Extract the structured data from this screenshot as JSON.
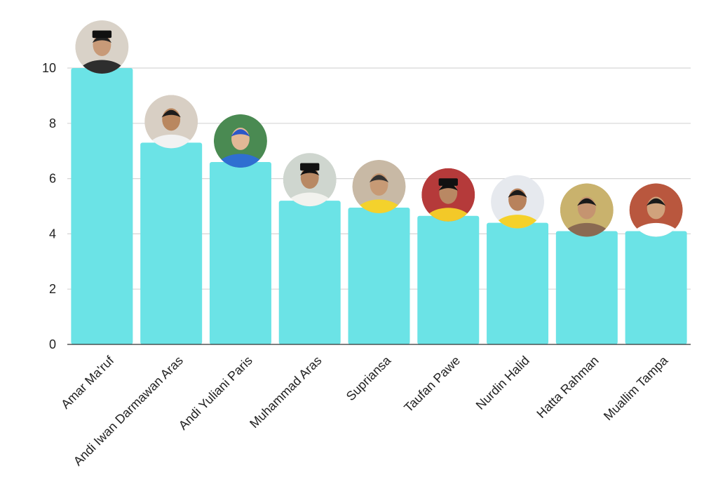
{
  "chart_data": {
    "type": "bar",
    "categories": [
      "Amar Ma'ruf",
      "Andi Iwan Darmawan Aras",
      "Andi Yuliani Paris",
      "Muhammad Aras",
      "Supriansa",
      "Taufan Pawe",
      "Nurdin Halid",
      "Hatta Rahman",
      "Muallim Tampa"
    ],
    "values": [
      10.0,
      7.3,
      6.6,
      5.2,
      4.95,
      4.65,
      4.4,
      4.1,
      4.1
    ],
    "yticks": [
      "0",
      "2",
      "4",
      "6",
      "8",
      "10"
    ],
    "ylim": [
      0,
      10
    ],
    "grid": true,
    "bar_color": "#6be3e6",
    "grid_color": "#d6d6d6",
    "axis_color": "#333333",
    "photo_palettes": [
      {
        "bg": "#d9d2c8",
        "skin": "#c89a78",
        "hair": "#222222",
        "cloth": "#2e2e2e",
        "hat": "#111111"
      },
      {
        "bg": "#d8cfc4",
        "skin": "#b9875f",
        "hair": "#1c1c1c",
        "cloth": "#f2f2f2",
        "hat": ""
      },
      {
        "bg": "#4a8a52",
        "skin": "#e2b896",
        "hair": "#2b57c9",
        "cloth": "#2f6fd1",
        "hat": ""
      },
      {
        "bg": "#cfd6cf",
        "skin": "#b88964",
        "hair": "#111111",
        "cloth": "#f2f2ee",
        "hat": "#111111"
      },
      {
        "bg": "#c8b9a5",
        "skin": "#c79a75",
        "hair": "#333333",
        "cloth": "#f4d22c",
        "hat": ""
      },
      {
        "bg": "#b53a3a",
        "skin": "#b98863",
        "hair": "#111111",
        "cloth": "#f3c928",
        "hat": "#111111"
      },
      {
        "bg": "#e6e9ee",
        "skin": "#b8825c",
        "hair": "#1a1a1a",
        "cloth": "#f5d12a",
        "hat": ""
      },
      {
        "bg": "#c9b26d",
        "skin": "#c59470",
        "hair": "#1a1a1a",
        "cloth": "#8a6a52",
        "hat": ""
      },
      {
        "bg": "#b9573e",
        "skin": "#d0a27c",
        "hair": "#1a1a1a",
        "cloth": "#ffffff",
        "hat": ""
      }
    ]
  }
}
